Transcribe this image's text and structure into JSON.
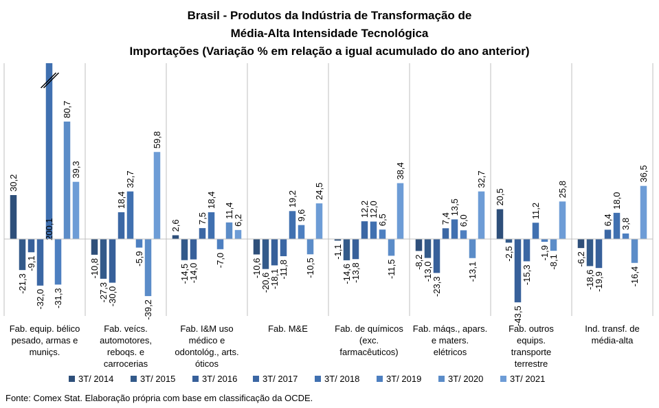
{
  "chart_data": {
    "type": "bar",
    "title": [
      "Brasil - Produtos da Indústria de Transformação de",
      "Média-Alta Intensidade Tecnológica",
      "Importações (Variação % em relação a igual acumulado do ano anterior)"
    ],
    "categories": [
      [
        "Fab. equip. bélico",
        "pesado, armas e",
        "muniçs."
      ],
      [
        "Fab. veícs.",
        "automotores,",
        "reboqs. e",
        "carrocerias"
      ],
      [
        "Fab. I&M uso",
        "médico e",
        "odontológ., arts.",
        "óticos"
      ],
      [
        "Fab. M&E"
      ],
      [
        "Fab. de químicos",
        "(exc.",
        "farmacêuticos)"
      ],
      [
        "Fab. máqs., apars.",
        "e maters.",
        "elétricos"
      ],
      [
        "Fab. outros",
        "equips.",
        "transporte",
        "terrestre"
      ],
      [
        "Ind. transf. de",
        "média-alta"
      ]
    ],
    "series": [
      {
        "name": "3T/ 2014",
        "color": "#2e4f7a",
        "values": [
          30.2,
          -10.8,
          2.6,
          -10.6,
          -1.1,
          -8.2,
          20.5,
          -6.2
        ]
      },
      {
        "name": "3T/ 2015",
        "color": "#335a8a",
        "values": [
          -21.3,
          -27.3,
          -14.5,
          -20.6,
          -14.6,
          -13.0,
          -2.5,
          -18.6
        ]
      },
      {
        "name": "3T/ 2016",
        "color": "#37609a",
        "values": [
          -9.1,
          -30.0,
          -14.0,
          -18.1,
          -13.8,
          -23.3,
          -43.5,
          -19.9
        ]
      },
      {
        "name": "3T/ 2017",
        "color": "#3b67a4",
        "values": [
          -32.0,
          18.4,
          7.5,
          -11.8,
          12.2,
          7.4,
          -15.3,
          6.4
        ]
      },
      {
        "name": "3T/ 2018",
        "color": "#4070b0",
        "values": [
          200.1,
          32.7,
          18.4,
          19.2,
          12.0,
          13.5,
          11.2,
          18.0
        ]
      },
      {
        "name": "3T/ 2019",
        "color": "#4d7fc0",
        "values": [
          -31.3,
          -5.9,
          -7.0,
          9.6,
          6.5,
          6.0,
          -1.9,
          3.8
        ]
      },
      {
        "name": "3T/ 2020",
        "color": "#5b8cc8",
        "values": [
          80.7,
          -39.2,
          11.4,
          -10.5,
          -11.5,
          -13.1,
          -8.1,
          -16.4
        ]
      },
      {
        "name": "3T/ 2021",
        "color": "#6d9cd6",
        "values": [
          39.3,
          59.8,
          6.2,
          24.5,
          38.4,
          32.7,
          25.8,
          36.5
        ]
      }
    ],
    "value_labels": [
      [
        "30,2",
        "-21,3",
        "-9,1",
        "-32,0",
        "200,1",
        "-31,3",
        "80,7",
        "39,3"
      ],
      [
        "-10,8",
        "-27,3",
        "-30,0",
        "18,4",
        "32,7",
        "-5,9",
        "-39,2",
        "59,8"
      ],
      [
        "2,6",
        "-14,5",
        "-14,0",
        "7,5",
        "18,4",
        "-7,0",
        "11,4",
        "6,2"
      ],
      [
        "-10,6",
        "-20,6",
        "-18,1",
        "-11,8",
        "19,2",
        "9,6",
        "-10,5",
        "24,5"
      ],
      [
        "-1,1",
        "-14,6",
        "-13,8",
        "12,2",
        "12,0",
        "6,5",
        "-11,5",
        "38,4"
      ],
      [
        "-8,2",
        "-13,0",
        "-23,3",
        "7,4",
        "13,5",
        "6,0",
        "-13,1",
        "32,7"
      ],
      [
        "20,5",
        "-2,5",
        "-43,5",
        "-15,3",
        "11,2",
        "-1,9",
        "-8,1",
        "25,8"
      ],
      [
        "-6,2",
        "-18,6",
        "-19,9",
        "6,4",
        "18,0",
        "3,8",
        "-16,4",
        "36,5"
      ]
    ],
    "axis_break": {
      "category": 0,
      "series": 4
    },
    "ylim": [
      -45,
      118
    ],
    "grid": false,
    "legend_position": "bottom",
    "source": "Fonte: Comex Stat. Elaboração própria com base em classificação da OCDE."
  }
}
